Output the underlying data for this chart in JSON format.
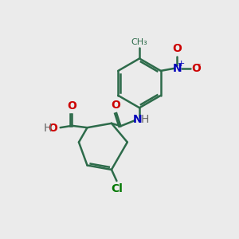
{
  "bg_color": "#ebebeb",
  "bond_color": "#2d6b4a",
  "bond_width": 1.8,
  "atom_colors": {
    "O": "#cc0000",
    "N": "#0000bb",
    "Cl": "#007700",
    "H": "#666666"
  },
  "font_size": 10,
  "font_size_small": 8
}
